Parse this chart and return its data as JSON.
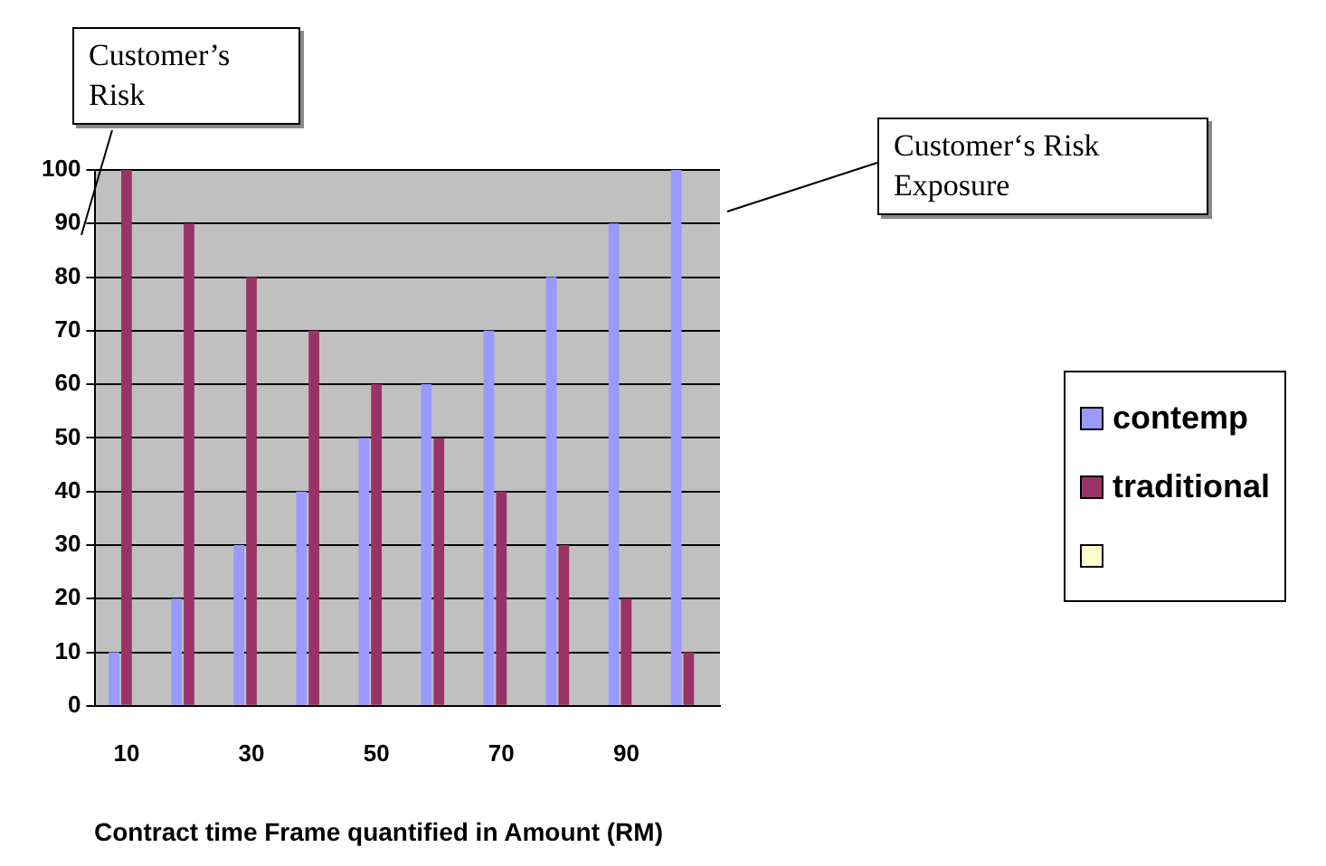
{
  "chart_data": {
    "type": "bar",
    "xlabel": "Contract time Frame quantified in Amount (RM)",
    "categories": [
      "10",
      null,
      "30",
      null,
      "50",
      null,
      "70",
      null,
      "90",
      null
    ],
    "series": [
      {
        "name": "contemp",
        "color": "#9999ff",
        "values": [
          10,
          20,
          30,
          40,
          50,
          60,
          70,
          80,
          90,
          100
        ]
      },
      {
        "name": "traditional",
        "color": "#993366",
        "values": [
          100,
          90,
          80,
          70,
          60,
          50,
          40,
          30,
          20,
          10
        ]
      },
      {
        "color": "#ffffcc",
        "values": [
          null,
          null,
          null,
          null,
          null,
          null,
          null,
          null,
          null,
          null
        ]
      }
    ],
    "ylim": [
      0,
      100
    ],
    "yticks": [
      0,
      10,
      20,
      30,
      40,
      50,
      60,
      70,
      80,
      90,
      100
    ],
    "grid": "y",
    "legend": "right",
    "annotations": [
      "Customer’s Risk",
      "Customer‘s Risk Exposure"
    ]
  }
}
